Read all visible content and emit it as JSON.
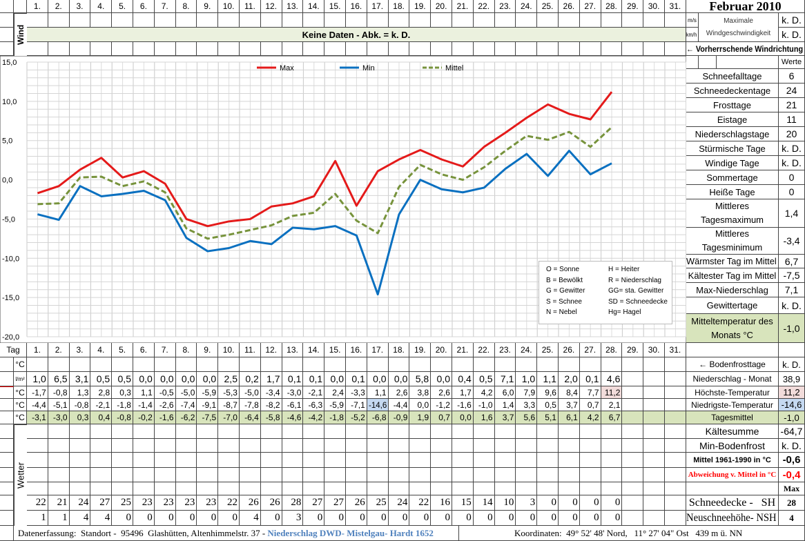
{
  "title": "Februar 2010",
  "days": [
    "1.",
    "2.",
    "3.",
    "4.",
    "5.",
    "6.",
    "7.",
    "8.",
    "9.",
    "10.",
    "11.",
    "12.",
    "13.",
    "14.",
    "15.",
    "16.",
    "17.",
    "18.",
    "19.",
    "20.",
    "21.",
    "22.",
    "23.",
    "24.",
    "25.",
    "26.",
    "27.",
    "28.",
    "29.",
    "30.",
    "31."
  ],
  "wind": {
    "label": "Wind",
    "no_data": "Keine Daten - Abk. = k. D.",
    "unit_ms": "m/s",
    "unit_kmh": "km/h",
    "max_label": "Maximale Windgeschwindigkeit",
    "max_ms": "k. D.",
    "max_kmh": "k. D.",
    "direction": "← Vorherrschende Windrichtung"
  },
  "stats": {
    "header": "Werte",
    "items": [
      {
        "label": "Schneefalltage",
        "value": "6"
      },
      {
        "label": "Schneedeckentage",
        "value": "24"
      },
      {
        "label": "Frosttage",
        "value": "21"
      },
      {
        "label": "Eistage",
        "value": "11"
      },
      {
        "label": "Niederschlagstage",
        "value": "20"
      },
      {
        "label": "Stürmische Tage",
        "value": "k. D."
      },
      {
        "label": "Windige Tage",
        "value": "k. D."
      },
      {
        "label": "Sommertage",
        "value": "0"
      },
      {
        "label": "Heiße Tage",
        "value": "0"
      },
      {
        "label": "Mittleres Tagesmaximum",
        "value": "1,4"
      },
      {
        "label": "Mittleres Tagesminimum",
        "value": "-3,4"
      },
      {
        "label": "Wärmster Tag im Mittel",
        "value": "6,7"
      },
      {
        "label": "Kältester Tag im Mittel",
        "value": "-7,5"
      },
      {
        "label": "Max-Niederschlag",
        "value": "7,1"
      },
      {
        "label": "Gewittertage",
        "value": "k. D."
      },
      {
        "label": "Mitteltemperatur des Monats °C",
        "value": "-1,0"
      }
    ]
  },
  "chart_data": {
    "type": "line",
    "x": [
      1,
      2,
      3,
      4,
      5,
      6,
      7,
      8,
      9,
      10,
      11,
      12,
      13,
      14,
      15,
      16,
      17,
      18,
      19,
      20,
      21,
      22,
      23,
      24,
      25,
      26,
      27,
      28
    ],
    "ylim": [
      -20,
      15
    ],
    "yticks": [
      "15,0",
      "10,0",
      "5,0",
      "0,0",
      "-5,0",
      "-10,0",
      "-15,0",
      "-20,0"
    ],
    "grid": true,
    "legend_position": "top",
    "series": [
      {
        "name": "Max",
        "color": "#e41a1a",
        "style": "solid",
        "values": [
          -1.7,
          -0.8,
          1.3,
          2.8,
          0.3,
          1.1,
          -0.5,
          -5.0,
          -5.9,
          -5.3,
          -5.0,
          -3.4,
          -3.0,
          -2.1,
          2.4,
          -3.3,
          1.1,
          2.6,
          3.8,
          2.6,
          1.7,
          4.2,
          6.0,
          7.9,
          9.6,
          8.4,
          7.7,
          11.2
        ]
      },
      {
        "name": "Min",
        "color": "#0a70c0",
        "style": "solid",
        "values": [
          -4.4,
          -5.1,
          -0.8,
          -2.1,
          -1.8,
          -1.4,
          -2.6,
          -7.4,
          -9.1,
          -8.7,
          -7.8,
          -8.2,
          -6.1,
          -6.3,
          -5.9,
          -7.1,
          -14.6,
          -4.4,
          0.0,
          -1.2,
          -1.6,
          -1.0,
          1.4,
          3.3,
          0.5,
          3.7,
          0.7,
          2.1
        ]
      },
      {
        "name": "Mittel",
        "color": "#77933c",
        "style": "dashed",
        "values": [
          -3.1,
          -3.0,
          0.3,
          0.4,
          -0.8,
          -0.2,
          -1.6,
          -6.2,
          -7.5,
          -7.0,
          -6.4,
          -5.8,
          -4.6,
          -4.2,
          -1.8,
          -5.2,
          -6.8,
          -0.9,
          1.9,
          0.7,
          0.0,
          1.6,
          3.7,
          5.6,
          5.1,
          6.1,
          4.2,
          6.7
        ]
      }
    ]
  },
  "weather_legend": [
    "O = Sonne",
    "H = Heiter",
    "B = Bewölkt",
    "R = Niederschlag",
    "G = Gewitter",
    "GG= sta. Gewitter",
    "S = Schnee",
    "SD = Schneedecke",
    "N = Nebel",
    "Hg= Hagel"
  ],
  "table": {
    "tag_label": "Tag",
    "ground_unit": "°C",
    "rows": [
      {
        "unit": "l/m²",
        "values": [
          "1,0",
          "6,5",
          "3,1",
          "0,5",
          "0,5",
          "0,0",
          "0,0",
          "0,0",
          "0,0",
          "2,5",
          "0,2",
          "1,7",
          "0,1",
          "0,1",
          "0,0",
          "0,1",
          "0,0",
          "0,0",
          "5,8",
          "0,0",
          "0,4",
          "0,5",
          "7,1",
          "1,0",
          "1,1",
          "2,0",
          "0,1",
          "4,6"
        ]
      },
      {
        "unit": "°C",
        "values": [
          "-1,7",
          "-0,8",
          "1,3",
          "2,8",
          "0,3",
          "1,1",
          "-0,5",
          "-5,0",
          "-5,9",
          "-5,3",
          "-5,0",
          "-3,4",
          "-3,0",
          "-2,1",
          "2,4",
          "-3,3",
          "1,1",
          "2,6",
          "3,8",
          "2,6",
          "1,7",
          "4,2",
          "6,0",
          "7,9",
          "9,6",
          "8,4",
          "7,7",
          "11,2"
        ]
      },
      {
        "unit": "°C",
        "values": [
          "-4,4",
          "-5,1",
          "-0,8",
          "-2,1",
          "-1,8",
          "-1,4",
          "-2,6",
          "-7,4",
          "-9,1",
          "-8,7",
          "-7,8",
          "-8,2",
          "-6,1",
          "-6,3",
          "-5,9",
          "-7,1",
          "-14,6",
          "-4,4",
          "0,0",
          "-1,2",
          "-1,6",
          "-1,0",
          "1,4",
          "3,3",
          "0,5",
          "3,7",
          "0,7",
          "2,1"
        ]
      },
      {
        "unit": "°C",
        "values": [
          "-3,1",
          "-3,0",
          "0,3",
          "0,4",
          "-0,8",
          "-0,2",
          "-1,6",
          "-6,2",
          "-7,5",
          "-7,0",
          "-6,4",
          "-5,8",
          "-4,6",
          "-4,2",
          "-1,8",
          "-5,2",
          "-6,8",
          "-0,9",
          "1,9",
          "0,7",
          "0,0",
          "1,6",
          "3,7",
          "5,6",
          "5,1",
          "6,1",
          "4,2",
          "6,7"
        ]
      }
    ],
    "weather_label": "Wetter",
    "snow_height": [
      "22",
      "21",
      "24",
      "27",
      "25",
      "23",
      "23",
      "23",
      "23",
      "22",
      "26",
      "26",
      "28",
      "27",
      "27",
      "26",
      "25",
      "24",
      "22",
      "16",
      "15",
      "14",
      "10",
      "3",
      "0",
      "0",
      "0",
      "0"
    ],
    "new_snow": [
      "1",
      "1",
      "4",
      "4",
      "0",
      "0",
      "0",
      "0",
      "0",
      "0",
      "4",
      "0",
      "3",
      "0",
      "0",
      "0",
      "0",
      "0",
      "0",
      "0",
      "0",
      "0",
      "0",
      "0",
      "0",
      "0",
      "0",
      "0"
    ]
  },
  "summary": {
    "bodenfrost": {
      "label": "← Bodenfrosttage",
      "value": "k. D."
    },
    "precip_month": {
      "label": "Niederschlag - Monat",
      "value": "38,9"
    },
    "max_temp": {
      "label": "Höchste-Temperatur",
      "value": "11,2"
    },
    "min_temp": {
      "label": "Niedrigste-Temperatur",
      "value": "-14,6"
    },
    "day_mean": {
      "label": "Tagesmittel",
      "value": "-1,0"
    },
    "cold_sum": {
      "label": "Kältesumme",
      "value": "-64,7"
    },
    "min_ground_frost": {
      "label": "Min-Bodenfrost",
      "value": "k. D."
    },
    "mean_1961_1990": {
      "label": "Mittel 1961-1990 in °C",
      "value": "-0,6"
    },
    "deviation": {
      "label": "Abweichung v. Mittel in °C",
      "value": "-0,4"
    },
    "max_header": "Max",
    "snow_height": {
      "label": "Schneedecke -   SH",
      "value": "28"
    },
    "new_snow": {
      "label": "Neuschneehöhe- NSH",
      "value": "4"
    }
  },
  "colors": {
    "light_green": "#ebf1de",
    "green": "#d8e4bc",
    "pink": "#f2dcdb",
    "blue": "#c5d9f1",
    "red": "#ff0000",
    "link_blue": "#4f81bd"
  },
  "footer": {
    "left": "Datenerfassung:  Standort -  95496  Glashütten, Altenhimmelstr. 37 - ",
    "link": "Niederschlag DWD- Mistelgau- Hardt 1652",
    "right": "Koordinaten:  49° 52' 48' Nord,   11° 27' 04\" Ost   439 m ü. NN"
  }
}
